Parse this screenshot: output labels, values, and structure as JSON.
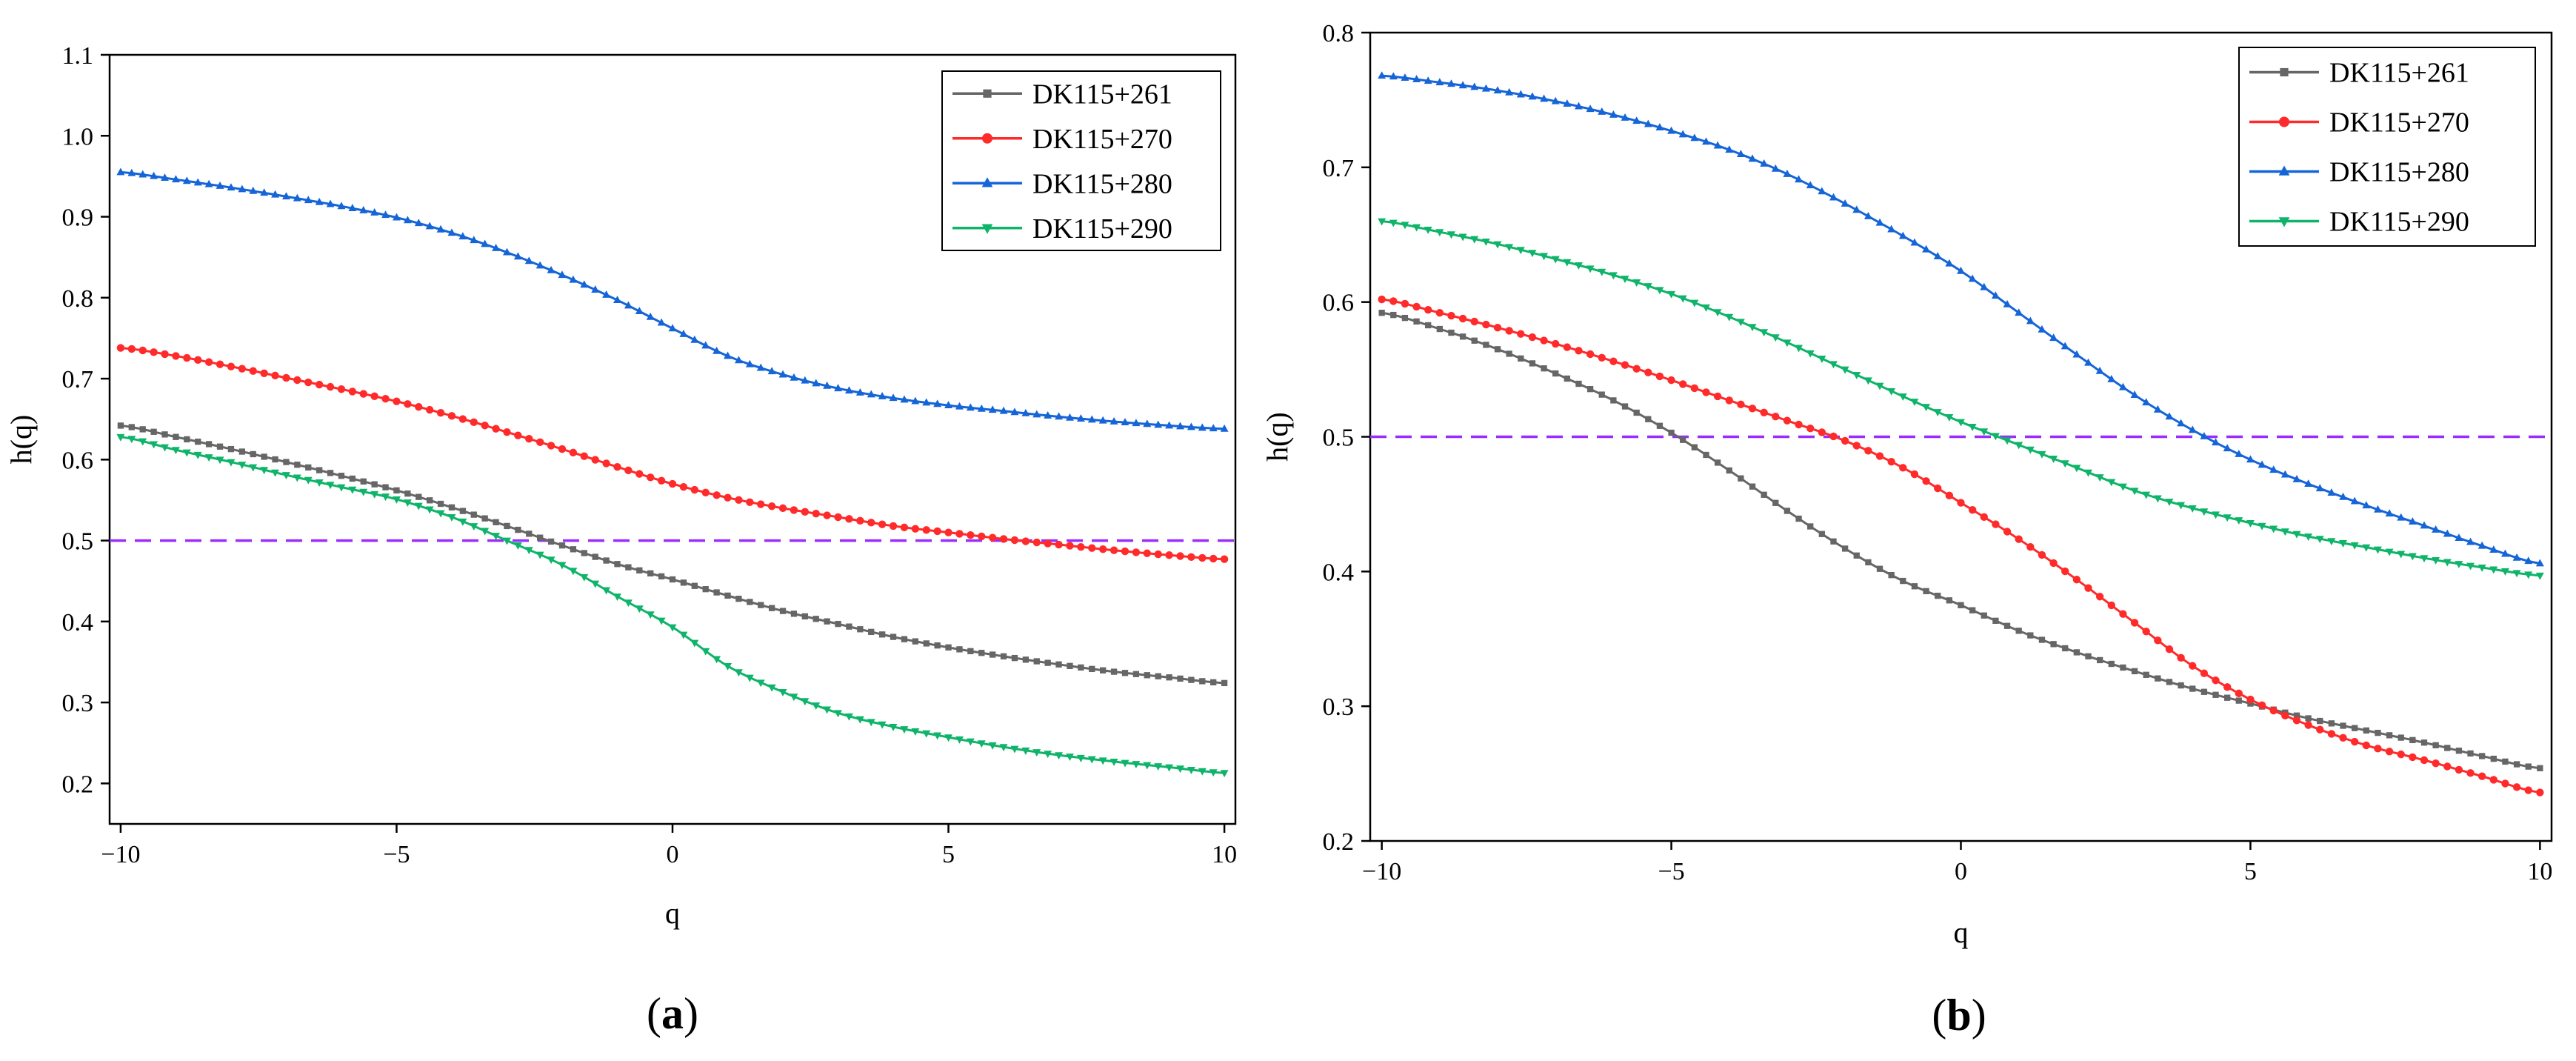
{
  "colors": {
    "DK115+261": "#666666",
    "DK115+270": "#ff2a2a",
    "DK115+280": "#1565d8",
    "DK115+290": "#0fb46a",
    "reference": "#9b2cff"
  },
  "chart_data": [
    {
      "panel": "(a)",
      "panel_letter": "a",
      "type": "line",
      "xlabel": "q",
      "ylabel": "h(q)",
      "xlim": [
        -10.2,
        10.2
      ],
      "ylim": [
        0.15,
        1.1
      ],
      "xticks": [
        -10,
        -5,
        0,
        5,
        10
      ],
      "xtick_labels": [
        "−10",
        "−5",
        "0",
        "5",
        "10"
      ],
      "yticks": [
        0.2,
        0.3,
        0.4,
        0.5,
        0.6,
        0.7,
        0.8,
        0.9,
        1.0,
        1.1
      ],
      "ytick_labels": [
        "0.2",
        "0.3",
        "0.4",
        "0.5",
        "0.6",
        "0.7",
        "0.8",
        "0.9",
        "1.0",
        "1.1"
      ],
      "grid": false,
      "legend_position": "top-right",
      "reference_line": {
        "y": 0.5,
        "style": "dashed"
      },
      "x": [
        -10,
        -9,
        -8,
        -7,
        -6,
        -5,
        -4,
        -3,
        -2,
        -1,
        0,
        1,
        2,
        3,
        4,
        5,
        6,
        7,
        8,
        9,
        10
      ],
      "series": [
        {
          "name": "DK115+261",
          "marker": "square",
          "values": [
            0.642,
            0.628,
            0.613,
            0.597,
            0.58,
            0.562,
            0.541,
            0.518,
            0.494,
            0.471,
            0.452,
            0.432,
            0.413,
            0.397,
            0.381,
            0.368,
            0.357,
            0.347,
            0.338,
            0.331,
            0.324
          ]
        },
        {
          "name": "DK115+270",
          "marker": "circle",
          "values": [
            0.738,
            0.728,
            0.715,
            0.701,
            0.687,
            0.672,
            0.654,
            0.634,
            0.613,
            0.591,
            0.57,
            0.553,
            0.54,
            0.529,
            0.518,
            0.51,
            0.502,
            0.495,
            0.488,
            0.482,
            0.477
          ]
        },
        {
          "name": "DK115+280",
          "marker": "triangle-up",
          "values": [
            0.955,
            0.946,
            0.936,
            0.925,
            0.913,
            0.899,
            0.88,
            0.856,
            0.828,
            0.797,
            0.762,
            0.728,
            0.705,
            0.688,
            0.676,
            0.667,
            0.66,
            0.653,
            0.647,
            0.642,
            0.638
          ]
        },
        {
          "name": "DK115+290",
          "marker": "triangle-down",
          "values": [
            0.628,
            0.612,
            0.597,
            0.581,
            0.566,
            0.551,
            0.529,
            0.5,
            0.47,
            0.431,
            0.393,
            0.345,
            0.313,
            0.287,
            0.27,
            0.257,
            0.245,
            0.235,
            0.227,
            0.22,
            0.213
          ]
        }
      ]
    },
    {
      "panel": "(b)",
      "panel_letter": "b",
      "type": "line",
      "xlabel": "q",
      "ylabel": "h(q)",
      "xlim": [
        -10.2,
        10.2
      ],
      "ylim": [
        0.2,
        0.8
      ],
      "xticks": [
        -10,
        -5,
        0,
        5,
        10
      ],
      "xtick_labels": [
        "−10",
        "−5",
        "0",
        "5",
        "10"
      ],
      "yticks": [
        0.2,
        0.3,
        0.4,
        0.5,
        0.6,
        0.7,
        0.8
      ],
      "ytick_labels": [
        "0.2",
        "0.3",
        "0.4",
        "0.5",
        "0.6",
        "0.7",
        "0.8"
      ],
      "grid": false,
      "legend_position": "top-right",
      "reference_line": {
        "y": 0.5,
        "style": "dashed"
      },
      "x": [
        -10,
        -9,
        -8,
        -7,
        -6,
        -5,
        -4,
        -3,
        -2,
        -1,
        0,
        1,
        2,
        3,
        4,
        5,
        6,
        7,
        8,
        9,
        10
      ],
      "series": [
        {
          "name": "DK115+261",
          "marker": "square",
          "values": [
            0.592,
            0.58,
            0.565,
            0.547,
            0.527,
            0.503,
            0.475,
            0.445,
            0.417,
            0.393,
            0.375,
            0.356,
            0.34,
            0.326,
            0.313,
            0.302,
            0.291,
            0.282,
            0.273,
            0.263,
            0.254
          ]
        },
        {
          "name": "DK115+270",
          "marker": "circle",
          "values": [
            0.602,
            0.592,
            0.581,
            0.569,
            0.556,
            0.542,
            0.527,
            0.512,
            0.497,
            0.477,
            0.451,
            0.424,
            0.394,
            0.362,
            0.33,
            0.305,
            0.286,
            0.271,
            0.26,
            0.248,
            0.236
          ]
        },
        {
          "name": "DK115+280",
          "marker": "triangle-up",
          "values": [
            0.768,
            0.763,
            0.757,
            0.749,
            0.739,
            0.727,
            0.713,
            0.695,
            0.673,
            0.649,
            0.623,
            0.592,
            0.561,
            0.531,
            0.505,
            0.483,
            0.465,
            0.449,
            0.434,
            0.419,
            0.406
          ]
        },
        {
          "name": "DK115+290",
          "marker": "triangle-down",
          "values": [
            0.66,
            0.652,
            0.643,
            0.632,
            0.62,
            0.606,
            0.589,
            0.57,
            0.55,
            0.53,
            0.511,
            0.494,
            0.477,
            0.46,
            0.447,
            0.436,
            0.426,
            0.418,
            0.41,
            0.403,
            0.397
          ]
        }
      ]
    }
  ]
}
